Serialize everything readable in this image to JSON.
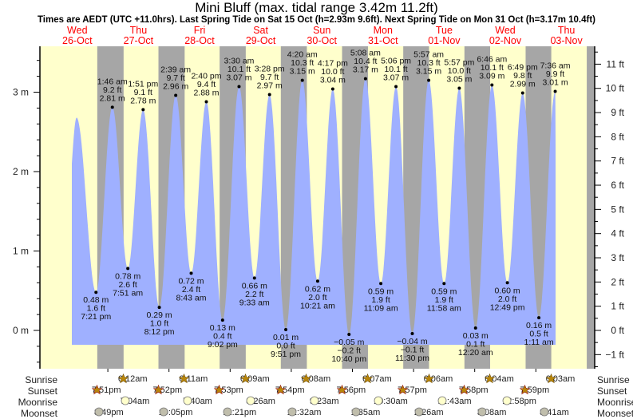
{
  "header": {
    "title": "Mini Bluff (max. tidal range 3.42m 11.2ft)",
    "subtitle": "Times are AEDT (UTC +11.0hrs). Last Spring Tide on Sat 15 Oct (h=2.93m 9.6ft). Next Spring Tide on Mon 31 Oct (h=3.17m 10.4ft)"
  },
  "days": [
    {
      "dow": "Wed",
      "date": "26-Oct"
    },
    {
      "dow": "Thu",
      "date": "27-Oct"
    },
    {
      "dow": "Fri",
      "date": "28-Oct"
    },
    {
      "dow": "Sat",
      "date": "29-Oct"
    },
    {
      "dow": "Sun",
      "date": "30-Oct"
    },
    {
      "dow": "Mon",
      "date": "31-Oct"
    },
    {
      "dow": "Tue",
      "date": "01-Nov"
    },
    {
      "dow": "Wed",
      "date": "02-Nov"
    },
    {
      "dow": "Thu",
      "date": "03-Nov"
    }
  ],
  "axes": {
    "left_ticks": [
      "3 m",
      "2 m",
      "1 m",
      "0 m"
    ],
    "right_ticks": [
      "11 ft",
      "10 ft",
      "9 ft",
      "8 ft",
      "7 ft",
      "6 ft",
      "5 ft",
      "4 ft",
      "3 ft",
      "2 ft",
      "1 ft",
      "0 ft",
      "−1 ft"
    ]
  },
  "colors": {
    "day": "#ffffcc",
    "night": "#a6a6a6",
    "water": "#9fb0ff",
    "date_label": "#ff0000",
    "sun_icon": "#b8860b",
    "moonrise_icon": "#ffffcc",
    "moonset_icon": "#c0beac"
  },
  "chart_data": {
    "type": "area",
    "title": "Mini Bluff (max. tidal range 3.42m 11.2ft)",
    "xlabel": "",
    "ylabel": "Tide height",
    "ylim_m": [
      -0.5,
      3.6
    ],
    "ylim_ft": [
      -1.6,
      11.8
    ],
    "grid": false,
    "legend": "none",
    "categories": [
      "Wed 26-Oct",
      "Thu 27-Oct",
      "Fri 28-Oct",
      "Sat 29-Oct",
      "Sun 30-Oct",
      "Mon 31-Oct",
      "Tue 01-Nov",
      "Wed 02-Nov",
      "Thu 03-Nov"
    ],
    "events": [
      {
        "type": "low",
        "day": "Wed 26-Oct",
        "time": "7:21 pm",
        "m": "0.48 m",
        "ft": "1.6 ft",
        "h": 0.48
      },
      {
        "type": "high",
        "day": "Thu 27-Oct",
        "time": "1:46 am",
        "m": "2.81 m",
        "ft": "9.2 ft",
        "h": 2.81
      },
      {
        "type": "low",
        "day": "Thu 27-Oct",
        "time": "7:51 am",
        "m": "0.78 m",
        "ft": "2.6 ft",
        "h": 0.78
      },
      {
        "type": "high",
        "day": "Thu 27-Oct",
        "time": "1:51 pm",
        "m": "2.78 m",
        "ft": "9.1 ft",
        "h": 2.78
      },
      {
        "type": "low",
        "day": "Thu 27-Oct",
        "time": "8:12 pm",
        "m": "0.29 m",
        "ft": "1.0 ft",
        "h": 0.29
      },
      {
        "type": "high",
        "day": "Fri 28-Oct",
        "time": "2:39 am",
        "m": "2.96 m",
        "ft": "9.7 ft",
        "h": 2.96
      },
      {
        "type": "low",
        "day": "Fri 28-Oct",
        "time": "8:43 am",
        "m": "0.72 m",
        "ft": "2.4 ft",
        "h": 0.72
      },
      {
        "type": "high",
        "day": "Fri 28-Oct",
        "time": "2:40 pm",
        "m": "2.88 m",
        "ft": "9.4 ft",
        "h": 2.88
      },
      {
        "type": "low",
        "day": "Fri 28-Oct",
        "time": "9:02 pm",
        "m": "0.13 m",
        "ft": "0.4 ft",
        "h": 0.13
      },
      {
        "type": "high",
        "day": "Sat 29-Oct",
        "time": "3:30 am",
        "m": "3.07 m",
        "ft": "10.1 ft",
        "h": 3.07
      },
      {
        "type": "low",
        "day": "Sat 29-Oct",
        "time": "9:33 am",
        "m": "0.66 m",
        "ft": "2.2 ft",
        "h": 0.66
      },
      {
        "type": "high",
        "day": "Sat 29-Oct",
        "time": "3:28 pm",
        "m": "2.97 m",
        "ft": "9.7 ft",
        "h": 2.97
      },
      {
        "type": "low",
        "day": "Sat 29-Oct",
        "time": "9:51 pm",
        "m": "0.01 m",
        "ft": "0.0 ft",
        "h": 0.01
      },
      {
        "type": "high",
        "day": "Sun 30-Oct",
        "time": "4:20 am",
        "m": "3.15 m",
        "ft": "10.3 ft",
        "h": 3.15
      },
      {
        "type": "low",
        "day": "Sun 30-Oct",
        "time": "10:21 am",
        "m": "0.62 m",
        "ft": "2.0 ft",
        "h": 0.62
      },
      {
        "type": "high",
        "day": "Sun 30-Oct",
        "time": "4:17 pm",
        "m": "3.04 m",
        "ft": "10.0 ft",
        "h": 3.04
      },
      {
        "type": "low",
        "day": "Sun 30-Oct",
        "time": "10:40 pm",
        "m": "−0.05 m",
        "ft": "−0.2 ft",
        "h": -0.05
      },
      {
        "type": "high",
        "day": "Mon 31-Oct",
        "time": "5:08 am",
        "m": "3.17 m",
        "ft": "10.4 ft",
        "h": 3.17
      },
      {
        "type": "low",
        "day": "Mon 31-Oct",
        "time": "11:09 am",
        "m": "0.59 m",
        "ft": "1.9 ft",
        "h": 0.59
      },
      {
        "type": "high",
        "day": "Mon 31-Oct",
        "time": "5:06 pm",
        "m": "3.07 m",
        "ft": "10.1 ft",
        "h": 3.07
      },
      {
        "type": "low",
        "day": "Mon 31-Oct",
        "time": "11:30 pm",
        "m": "−0.04 m",
        "ft": "−0.1 ft",
        "h": -0.04
      },
      {
        "type": "high",
        "day": "Tue 01-Nov",
        "time": "5:57 am",
        "m": "3.15 m",
        "ft": "10.3 ft",
        "h": 3.15
      },
      {
        "type": "low",
        "day": "Tue 01-Nov",
        "time": "11:58 am",
        "m": "0.59 m",
        "ft": "1.9 ft",
        "h": 0.59
      },
      {
        "type": "high",
        "day": "Tue 01-Nov",
        "time": "5:57 pm",
        "m": "3.05 m",
        "ft": "10.0 ft",
        "h": 3.05
      },
      {
        "type": "low",
        "day": "Wed 02-Nov",
        "time": "12:20 am",
        "m": "0.03 m",
        "ft": "0.1 ft",
        "h": 0.03
      },
      {
        "type": "high",
        "day": "Wed 02-Nov",
        "time": "6:46 am",
        "m": "3.09 m",
        "ft": "10.1 ft",
        "h": 3.09
      },
      {
        "type": "low",
        "day": "Wed 02-Nov",
        "time": "12:49 pm",
        "m": "0.60 m",
        "ft": "2.0 ft",
        "h": 0.6
      },
      {
        "type": "high",
        "day": "Wed 02-Nov",
        "time": "6:49 pm",
        "m": "2.99 m",
        "ft": "9.8 ft",
        "h": 2.99
      },
      {
        "type": "low",
        "day": "Thu 03-Nov",
        "time": "1:11 am",
        "m": "0.16 m",
        "ft": "0.5 ft",
        "h": 0.16
      },
      {
        "type": "high",
        "day": "Thu 03-Nov",
        "time": "7:36 am",
        "m": "3.01 m",
        "ft": "9.9 ft",
        "h": 3.01
      }
    ]
  },
  "almanac": {
    "labels": {
      "sunrise": "Sunrise",
      "sunset": "Sunset",
      "moonrise": "Moonrise",
      "moonset": "Moonset"
    },
    "sunrise": [
      "6:12am",
      "6:11am",
      "6:09am",
      "6:08am",
      "6:07am",
      "6:06am",
      "6:04am",
      "6:03am"
    ],
    "sunset": [
      "7:51pm",
      "7:52pm",
      "7:53pm",
      "7:54pm",
      "7:56pm",
      "7:57pm",
      "7:58pm",
      "7:59pm"
    ],
    "moonrise": [
      "7:04am",
      "7:40am",
      "8:26am",
      "9:23am",
      "10:30am",
      "11:43am",
      "12:58pm"
    ],
    "moonset": [
      "8:49pm",
      "10:05pm",
      "11:21pm",
      "12:32am",
      "1:35am",
      "2:26am",
      "3:08am",
      "3:41am"
    ]
  }
}
